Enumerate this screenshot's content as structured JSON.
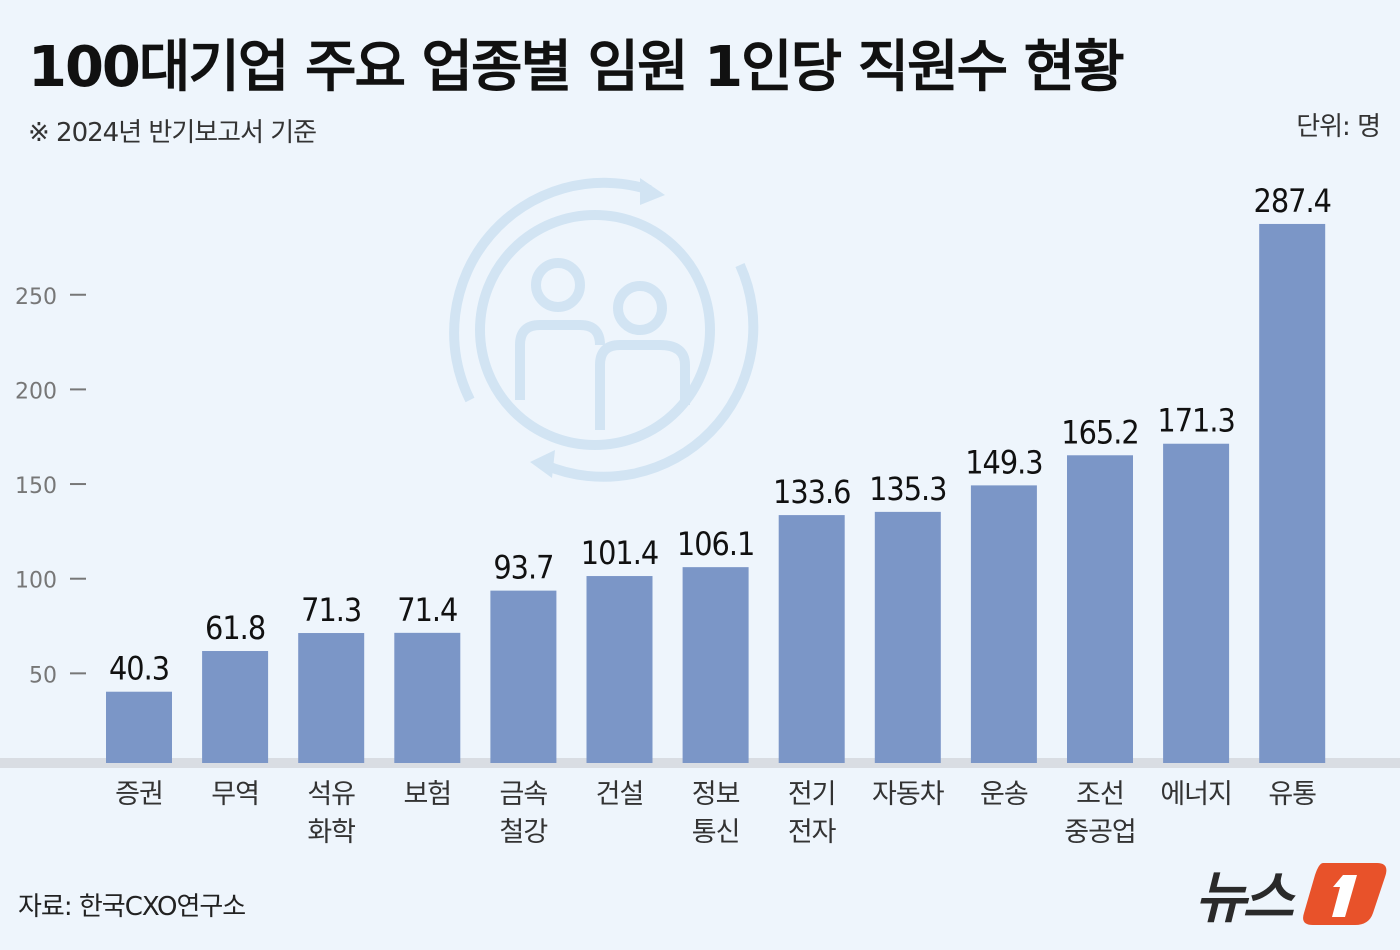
{
  "header": {
    "title": "100대기업 주요 업종별 임원 1인당 직원수 현황",
    "subtitle": "※ 2024년 반기보고서 기준",
    "unit": "단위: 명"
  },
  "footer": {
    "source": "자료: 한국CXO연구소",
    "logo_text": "뉴스1"
  },
  "colors": {
    "bar": "#7b96c7",
    "background": "#eef5fc",
    "logo_accent": "#e8522a"
  },
  "chart_data": {
    "type": "bar",
    "title": "100대기업 주요 업종별 임원 1인당 직원수 현황",
    "xlabel": "",
    "ylabel": "",
    "ylim": [
      0,
      300
    ],
    "yticks": [
      50,
      100,
      150,
      200,
      250
    ],
    "grid": false,
    "categories": [
      [
        "증권"
      ],
      [
        "무역"
      ],
      [
        "석유",
        "화학"
      ],
      [
        "보험"
      ],
      [
        "금속",
        "철강"
      ],
      [
        "건설"
      ],
      [
        "정보",
        "통신"
      ],
      [
        "전기",
        "전자"
      ],
      [
        "자동차"
      ],
      [
        "운송"
      ],
      [
        "조선",
        "중공업"
      ],
      [
        "에너지"
      ],
      [
        "유통"
      ]
    ],
    "values": [
      40.3,
      61.8,
      71.3,
      71.4,
      93.7,
      101.4,
      106.1,
      133.6,
      135.3,
      149.3,
      165.2,
      171.3,
      287.4
    ],
    "value_labels": [
      "40.3",
      "61.8",
      "71.3",
      "71.4",
      "93.7",
      "101.4",
      "106.1",
      "133.6",
      "135.3",
      "149.3",
      "165.2",
      "171.3",
      "287.4"
    ]
  }
}
